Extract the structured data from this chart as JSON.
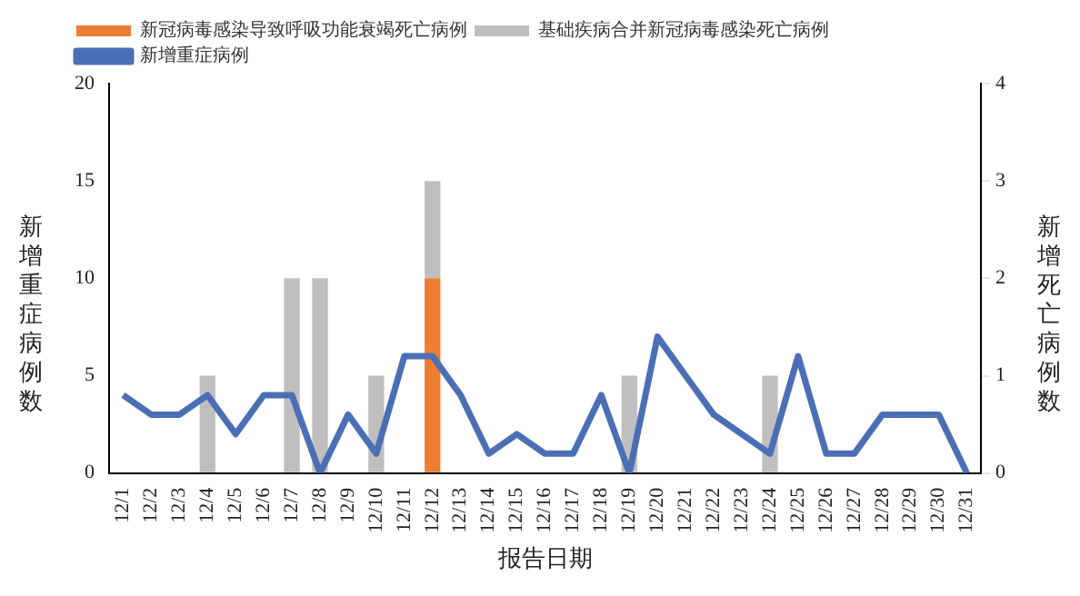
{
  "chart_data": {
    "type": "bar",
    "xlabel": "报告日期",
    "ylabel": "新增重症病例数",
    "y2label": "新增死亡病例数",
    "categories": [
      "12/1",
      "12/2",
      "12/3",
      "12/4",
      "12/5",
      "12/6",
      "12/7",
      "12/8",
      "12/9",
      "12/10",
      "12/11",
      "12/12",
      "12/13",
      "12/14",
      "12/15",
      "12/16",
      "12/17",
      "12/18",
      "12/19",
      "12/20",
      "12/21",
      "12/22",
      "12/23",
      "12/24",
      "12/25",
      "12/26",
      "12/27",
      "12/28",
      "12/29",
      "12/30",
      "12/31"
    ],
    "series": [
      {
        "name": "新冠病毒感染导致呼吸功能衰竭死亡病例",
        "color": "#ed7d31",
        "axis": "y2",
        "values": [
          null,
          null,
          null,
          null,
          null,
          null,
          null,
          null,
          null,
          null,
          null,
          2,
          null,
          null,
          null,
          null,
          null,
          null,
          null,
          null,
          null,
          null,
          null,
          null,
          null,
          null,
          null,
          null,
          null,
          null,
          null
        ]
      },
      {
        "name": "基础疾病合并新冠病毒感染死亡病例",
        "color": "#bfbfbf",
        "axis": "y2",
        "values": [
          null,
          null,
          null,
          1,
          null,
          null,
          2,
          2,
          null,
          1,
          null,
          1,
          null,
          null,
          null,
          null,
          null,
          null,
          1,
          null,
          null,
          null,
          null,
          1,
          null,
          null,
          null,
          null,
          null,
          null,
          null
        ]
      },
      {
        "name": "新增重症病例",
        "color": "#4a6fb5",
        "type": "line",
        "axis": "y",
        "values": [
          4,
          3,
          3,
          4,
          2,
          4,
          4,
          0,
          3,
          1,
          6,
          6,
          4,
          1,
          2,
          1,
          1,
          4,
          0,
          7,
          5,
          3,
          2,
          1,
          6,
          1,
          1,
          3,
          3,
          3,
          0
        ]
      }
    ],
    "stacked": true,
    "ylim": [
      0,
      20
    ],
    "yticks": [
      0,
      5,
      10,
      15,
      20
    ],
    "y2lim": [
      0,
      4
    ],
    "y2ticks": [
      0,
      1,
      2,
      3,
      4
    ],
    "legend": "top left",
    "marker": "none"
  }
}
